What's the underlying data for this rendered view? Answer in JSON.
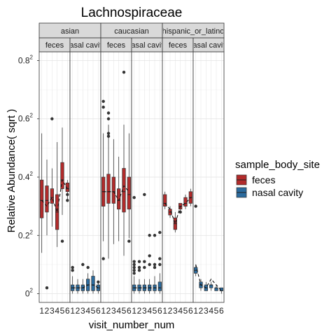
{
  "chart_data": {
    "type": "boxplot",
    "title": "Lachnospiraceae",
    "xlabel": "visit_number_num",
    "ylabel": "Relative Abundance( sqrt )",
    "x_categories": [
      "1",
      "2",
      "3",
      "4",
      "5",
      "6"
    ],
    "y_ticks": [
      {
        "value": 0.0,
        "label": "0",
        "exp": "2"
      },
      {
        "value": 0.2,
        "label": "0.2",
        "exp": "2"
      },
      {
        "value": 0.4,
        "label": "0.4",
        "exp": "2"
      },
      {
        "value": 0.6,
        "label": "0.6",
        "exp": "2"
      },
      {
        "value": 0.8,
        "label": "0.8",
        "exp": "2"
      }
    ],
    "ylim": [
      -0.03,
      0.83
    ],
    "grid": true,
    "legend": {
      "title": "sample_body_site",
      "position": "right",
      "entries": [
        {
          "label": "feces",
          "color": "#b22b2b"
        },
        {
          "label": "nasal cavity",
          "color": "#2b6b9e"
        }
      ]
    },
    "facets_top": [
      "asian",
      "caucasian",
      "hispanic_or_latino"
    ],
    "facets_sub": [
      "feces",
      "nasal cavity"
    ],
    "panels": [
      {
        "ethnicity": "asian",
        "site": "feces",
        "color": "#b22b2b",
        "boxes": [
          {
            "x": 1,
            "q1": 0.26,
            "median": 0.32,
            "q3": 0.39,
            "lo": 0.14,
            "hi": 0.55
          },
          {
            "x": 2,
            "q1": 0.28,
            "median": 0.32,
            "q3": 0.37,
            "lo": 0.2,
            "hi": 0.46
          },
          {
            "x": 3,
            "q1": 0.31,
            "median": 0.33,
            "q3": 0.36,
            "lo": 0.23,
            "hi": 0.43
          },
          {
            "x": 4,
            "q1": 0.22,
            "median": 0.28,
            "q3": 0.34,
            "lo": 0.16,
            "hi": 0.52
          },
          {
            "x": 5,
            "q1": 0.36,
            "median": 0.39,
            "q3": 0.45,
            "lo": 0.27,
            "hi": 0.57
          },
          {
            "x": 6,
            "q1": 0.35,
            "median": 0.36,
            "q3": 0.38,
            "lo": 0.32,
            "hi": 0.39
          }
        ],
        "outliers": [
          {
            "x": 2,
            "y": 0.02
          },
          {
            "x": 3,
            "y": 0.6
          },
          {
            "x": 5,
            "y": 0.18
          },
          {
            "x": 6,
            "y": 0.34
          },
          {
            "x": 6,
            "y": 0.32
          }
        ],
        "trend": [
          0.32,
          0.3,
          0.33,
          0.28,
          0.39,
          0.36
        ]
      },
      {
        "ethnicity": "asian",
        "site": "nasal cavity",
        "color": "#2b6b9e",
        "boxes": [
          {
            "x": 1,
            "q1": 0.01,
            "median": 0.02,
            "q3": 0.03,
            "lo": 0.0,
            "hi": 0.06
          },
          {
            "x": 2,
            "q1": 0.01,
            "median": 0.02,
            "q3": 0.03,
            "lo": 0.0,
            "hi": 0.05
          },
          {
            "x": 3,
            "q1": 0.01,
            "median": 0.02,
            "q3": 0.03,
            "lo": 0.0,
            "hi": 0.05
          },
          {
            "x": 4,
            "q1": 0.01,
            "median": 0.03,
            "q3": 0.05,
            "lo": 0.0,
            "hi": 0.07
          },
          {
            "x": 5,
            "q1": 0.01,
            "median": 0.03,
            "q3": 0.06,
            "lo": 0.0,
            "hi": 0.08
          },
          {
            "x": 6,
            "q1": 0.01,
            "median": 0.02,
            "q3": 0.03,
            "lo": 0.0,
            "hi": 0.04
          }
        ],
        "outliers": [
          {
            "x": 1,
            "y": 0.08
          },
          {
            "x": 1,
            "y": 0.09
          },
          {
            "x": 3,
            "y": 0.1
          },
          {
            "x": 4,
            "y": 0.09
          },
          {
            "x": 6,
            "y": 0.04
          }
        ],
        "trend": [
          0.02,
          0.02,
          0.02,
          0.03,
          0.03,
          0.02
        ]
      },
      {
        "ethnicity": "caucasian",
        "site": "feces",
        "color": "#b22b2b",
        "boxes": [
          {
            "x": 1,
            "q1": 0.3,
            "median": 0.35,
            "q3": 0.4,
            "lo": 0.18,
            "hi": 0.55
          },
          {
            "x": 2,
            "q1": 0.31,
            "median": 0.35,
            "q3": 0.41,
            "lo": 0.12,
            "hi": 0.58
          },
          {
            "x": 3,
            "q1": 0.31,
            "median": 0.35,
            "q3": 0.4,
            "lo": 0.17,
            "hi": 0.53
          },
          {
            "x": 4,
            "q1": 0.29,
            "median": 0.32,
            "q3": 0.36,
            "lo": 0.18,
            "hi": 0.47
          },
          {
            "x": 5,
            "q1": 0.28,
            "median": 0.35,
            "q3": 0.43,
            "lo": 0.13,
            "hi": 0.58
          },
          {
            "x": 6,
            "q1": 0.29,
            "median": 0.34,
            "q3": 0.4,
            "lo": 0.19,
            "hi": 0.55
          }
        ],
        "outliers": [
          {
            "x": 1,
            "y": 0.66
          },
          {
            "x": 1,
            "y": 0.64
          },
          {
            "x": 1,
            "y": 0.12
          },
          {
            "x": 2,
            "y": 0.62
          },
          {
            "x": 2,
            "y": 0.6
          },
          {
            "x": 2,
            "y": 0.55
          },
          {
            "x": 2,
            "y": 0.54
          },
          {
            "x": 5,
            "y": 0.76
          },
          {
            "x": 6,
            "y": 0.18
          }
        ],
        "trend": [
          0.35,
          0.35,
          0.35,
          0.32,
          0.37,
          0.35
        ]
      },
      {
        "ethnicity": "caucasian",
        "site": "nasal cavity",
        "color": "#2b6b9e",
        "boxes": [
          {
            "x": 1,
            "q1": 0.01,
            "median": 0.02,
            "q3": 0.03,
            "lo": 0.0,
            "hi": 0.06
          },
          {
            "x": 2,
            "q1": 0.01,
            "median": 0.02,
            "q3": 0.03,
            "lo": 0.0,
            "hi": 0.05
          },
          {
            "x": 3,
            "q1": 0.01,
            "median": 0.02,
            "q3": 0.03,
            "lo": 0.0,
            "hi": 0.05
          },
          {
            "x": 4,
            "q1": 0.01,
            "median": 0.02,
            "q3": 0.03,
            "lo": 0.0,
            "hi": 0.05
          },
          {
            "x": 5,
            "q1": 0.01,
            "median": 0.02,
            "q3": 0.03,
            "lo": 0.0,
            "hi": 0.06
          },
          {
            "x": 6,
            "q1": 0.01,
            "median": 0.02,
            "q3": 0.04,
            "lo": 0.0,
            "hi": 0.07
          }
        ],
        "outliers": [
          {
            "x": 1,
            "y": 0.33
          },
          {
            "x": 1,
            "y": 0.11
          },
          {
            "x": 1,
            "y": 0.1
          },
          {
            "x": 1,
            "y": 0.09
          },
          {
            "x": 1,
            "y": 0.08
          },
          {
            "x": 1,
            "y": 0.07
          },
          {
            "x": 2,
            "y": 0.11
          },
          {
            "x": 2,
            "y": 0.09
          },
          {
            "x": 2,
            "y": 0.08
          },
          {
            "x": 3,
            "y": 0.34
          },
          {
            "x": 3,
            "y": 0.11
          },
          {
            "x": 3,
            "y": 0.09
          },
          {
            "x": 4,
            "y": 0.2
          },
          {
            "x": 4,
            "y": 0.13
          },
          {
            "x": 4,
            "y": 0.1
          },
          {
            "x": 5,
            "y": 0.2
          },
          {
            "x": 5,
            "y": 0.1
          },
          {
            "x": 5,
            "y": 0.09
          },
          {
            "x": 6,
            "y": 0.21
          },
          {
            "x": 6,
            "y": 0.12
          },
          {
            "x": 6,
            "y": 0.1
          }
        ],
        "trend": [
          0.02,
          0.02,
          0.02,
          0.02,
          0.02,
          0.02
        ]
      },
      {
        "ethnicity": "hispanic_or_latino",
        "site": "feces",
        "color": "#b22b2b",
        "boxes": [
          {
            "x": 1,
            "q1": 0.3,
            "median": 0.31,
            "q3": 0.34,
            "lo": 0.29,
            "hi": 0.35
          },
          {
            "x": 2,
            "q1": 0.27,
            "median": 0.28,
            "q3": 0.29,
            "lo": 0.26,
            "hi": 0.3
          },
          {
            "x": 3,
            "q1": 0.22,
            "median": 0.24,
            "q3": 0.26,
            "lo": 0.21,
            "hi": 0.28
          },
          {
            "x": 4,
            "q1": 0.29,
            "median": 0.3,
            "q3": 0.31,
            "lo": 0.28,
            "hi": 0.31
          },
          {
            "x": 5,
            "q1": 0.3,
            "median": 0.31,
            "q3": 0.33,
            "lo": 0.29,
            "hi": 0.34
          },
          {
            "x": 6,
            "q1": 0.31,
            "median": 0.33,
            "q3": 0.35,
            "lo": 0.3,
            "hi": 0.36
          }
        ],
        "outliers": [
          {
            "x": 4,
            "y": 0.28
          }
        ],
        "trend": [
          0.31,
          0.29,
          0.24,
          0.3,
          0.31,
          0.33
        ]
      },
      {
        "ethnicity": "hispanic_or_latino",
        "site": "nasal cavity",
        "color": "#2b6b9e",
        "boxes": [
          {
            "x": 1,
            "q1": 0.07,
            "median": 0.08,
            "q3": 0.09,
            "lo": 0.06,
            "hi": 0.1
          },
          {
            "x": 2,
            "q1": 0.02,
            "median": 0.03,
            "q3": 0.04,
            "lo": 0.01,
            "hi": 0.05
          },
          {
            "x": 3,
            "q1": 0.01,
            "median": 0.02,
            "q3": 0.03,
            "lo": 0.01,
            "hi": 0.04
          },
          {
            "x": 4,
            "q1": 0.02,
            "median": 0.03,
            "q3": 0.03,
            "lo": 0.01,
            "hi": 0.04
          },
          {
            "x": 5,
            "q1": 0.01,
            "median": 0.02,
            "q3": 0.02,
            "lo": 0.01,
            "hi": 0.03
          },
          {
            "x": 6,
            "q1": 0.01,
            "median": 0.01,
            "q3": 0.02,
            "lo": 0.0,
            "hi": 0.02
          }
        ],
        "outliers": [
          {
            "x": 1,
            "y": 0.3
          }
        ],
        "trend": [
          0.1,
          0.03,
          0.02,
          0.05,
          0.03,
          0.01
        ]
      }
    ]
  }
}
